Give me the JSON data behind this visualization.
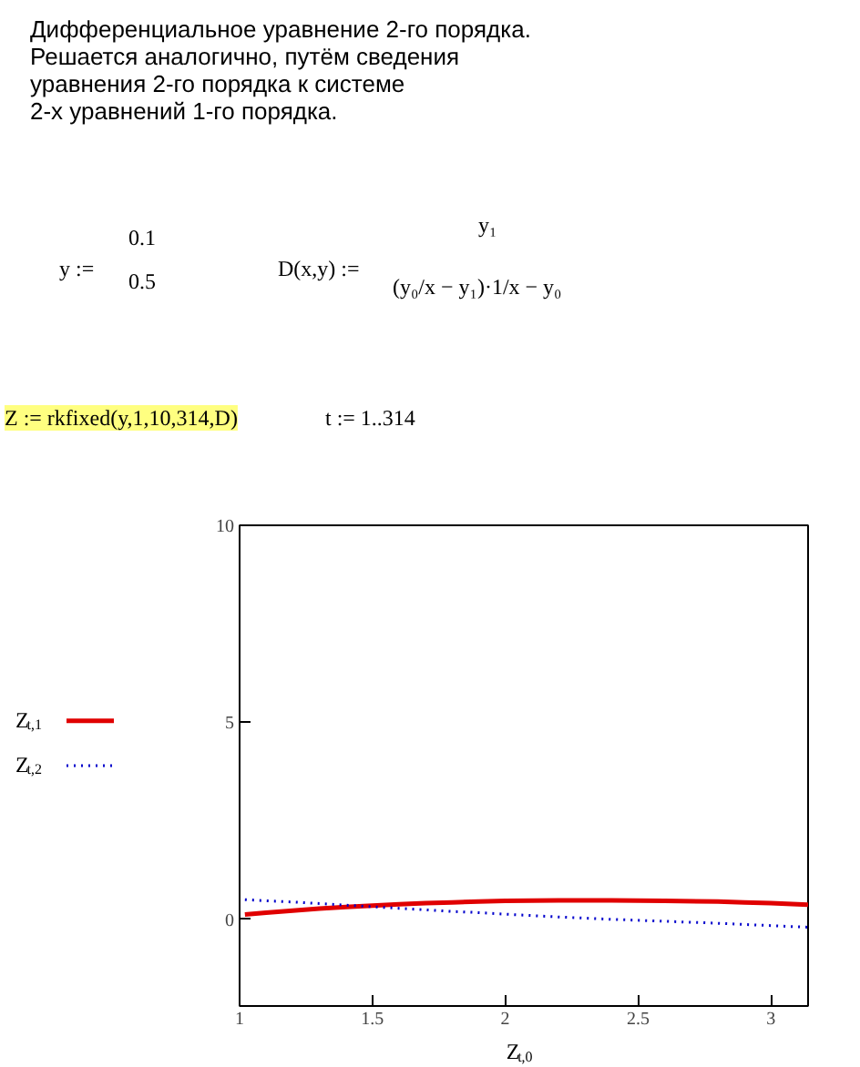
{
  "chart_data": {
    "type": "line",
    "annotations": [
      "Дифференциальное уравнение 2-го порядка.",
      "Решается аналогично, путём сведения",
      "уравнения 2-го порядка к системе",
      " 2-х уравнений  1-го порядка.",
      "y :=",
      "0.1",
      "0.5",
      "D(x,y) :=",
      "y₁",
      "(y₀/x − y₁)·1/x − y₀",
      "Z := rkfixed(y,1,10,314,D)",
      "t := 1..314"
    ],
    "xlabel": "Z$_{t,0}$",
    "xlim": [
      1,
      3.14
    ],
    "xticks": [
      1,
      1.5,
      2,
      2.5,
      3
    ],
    "ylim": [
      -2.2,
      10
    ],
    "yticks": [
      0,
      5,
      10
    ],
    "grid": false,
    "legend": "left",
    "series": [
      {
        "name": "Z$_{t,1}$",
        "color": "#e00000",
        "line_style": "solid",
        "x": [
          1.02,
          1.1,
          1.2,
          1.3,
          1.4,
          1.5,
          1.6,
          1.7,
          1.8,
          1.9,
          2.0,
          2.2,
          2.4,
          2.6,
          2.8,
          2.9,
          3.0,
          3.1,
          3.14
        ],
        "values": [
          0.12,
          0.17,
          0.22,
          0.27,
          0.31,
          0.35,
          0.38,
          0.41,
          0.43,
          0.45,
          0.47,
          0.48,
          0.48,
          0.47,
          0.45,
          0.43,
          0.41,
          0.38,
          0.37
        ]
      },
      {
        "name": "Z$_{t,2}$",
        "color": "#0000cc",
        "line_style": "dotted",
        "x": [
          1.02,
          1.1,
          1.2,
          1.3,
          1.4,
          1.5,
          1.6,
          1.7,
          1.8,
          1.9,
          2.0,
          2.2,
          2.4,
          2.6,
          2.8,
          2.9,
          3.0,
          3.1,
          3.14
        ],
        "values": [
          0.5,
          0.47,
          0.44,
          0.4,
          0.36,
          0.32,
          0.28,
          0.24,
          0.2,
          0.17,
          0.13,
          0.06,
          0.0,
          -0.05,
          -0.1,
          -0.13,
          -0.16,
          -0.19,
          -0.2
        ]
      }
    ]
  }
}
